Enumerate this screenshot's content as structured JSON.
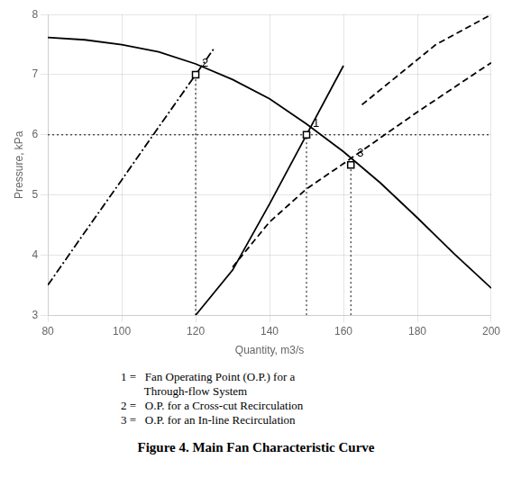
{
  "chart_data": {
    "type": "line",
    "title": "Figure 4. Main Fan Characteristic Curve",
    "xlabel": "Quantity, m3/s",
    "ylabel": "Pressure, kPa",
    "xlim": [
      80,
      200
    ],
    "ylim": [
      3,
      8
    ],
    "xticks": [
      80,
      100,
      120,
      140,
      160,
      180,
      200
    ],
    "yticks": [
      3,
      4,
      5,
      6,
      7,
      8
    ],
    "grid": true,
    "caption": [
      "1 =   Fan Operating Point (O.P.) for a",
      "        Through-flow System",
      "2 =   O.P. for a Cross-cut Recirculation",
      "3 =   O.P. for an In-line Recirculation"
    ],
    "series": [
      {
        "type": "line",
        "line_style": "solid",
        "color": "#000000",
        "x": [
          80,
          90,
          100,
          110,
          120,
          130,
          140,
          150,
          160,
          170,
          180,
          190,
          200
        ],
        "values": [
          7.62,
          7.58,
          7.5,
          7.38,
          7.18,
          6.92,
          6.6,
          6.18,
          5.72,
          5.2,
          4.62,
          4.02,
          3.45
        ]
      },
      {
        "type": "line",
        "line_style": "solid",
        "color": "#000000",
        "x": [
          120,
          130,
          140,
          150,
          160
        ],
        "values": [
          3.0,
          3.75,
          4.85,
          6.0,
          7.15
        ]
      },
      {
        "type": "line",
        "line_style": "dashdot",
        "color": "#000000",
        "x": [
          80,
          90,
          100,
          110,
          120,
          125
        ],
        "values": [
          3.5,
          4.38,
          5.25,
          6.13,
          7.0,
          7.44
        ]
      },
      {
        "type": "line",
        "line_style": "dashed",
        "color": "#000000",
        "x": [
          130,
          140,
          150,
          160,
          170,
          180,
          200
        ],
        "values": [
          3.8,
          4.55,
          5.1,
          5.52,
          5.95,
          6.38,
          7.2
        ]
      },
      {
        "type": "line",
        "line_style": "dashed",
        "color": "#000000",
        "x": [
          165,
          175,
          185,
          200
        ],
        "values": [
          6.5,
          7.0,
          7.5,
          8.0
        ]
      },
      {
        "type": "line",
        "line_style": "dotted",
        "color": "#000000",
        "x": [
          120,
          120
        ],
        "values": [
          3,
          7.0
        ]
      },
      {
        "type": "line",
        "line_style": "dotted",
        "color": "#000000",
        "x": [
          150,
          150
        ],
        "values": [
          3,
          6.0
        ]
      },
      {
        "type": "line",
        "line_style": "dotted",
        "color": "#000000",
        "x": [
          80,
          150
        ],
        "values": [
          6.0,
          6.0
        ]
      },
      {
        "type": "line",
        "line_style": "dotted",
        "color": "#000000",
        "x": [
          162,
          162
        ],
        "values": [
          3,
          5.5
        ]
      },
      {
        "type": "line",
        "line_style": "dotted",
        "color": "#000000",
        "x": [
          150,
          200
        ],
        "values": [
          6.0,
          6.0
        ]
      },
      {
        "type": "scatter",
        "marker": "square",
        "color": "#000000",
        "x": [
          150,
          120,
          162
        ],
        "values": [
          6.0,
          7.0,
          5.5
        ],
        "point_labels": [
          "1",
          "2",
          "3"
        ]
      }
    ]
  }
}
